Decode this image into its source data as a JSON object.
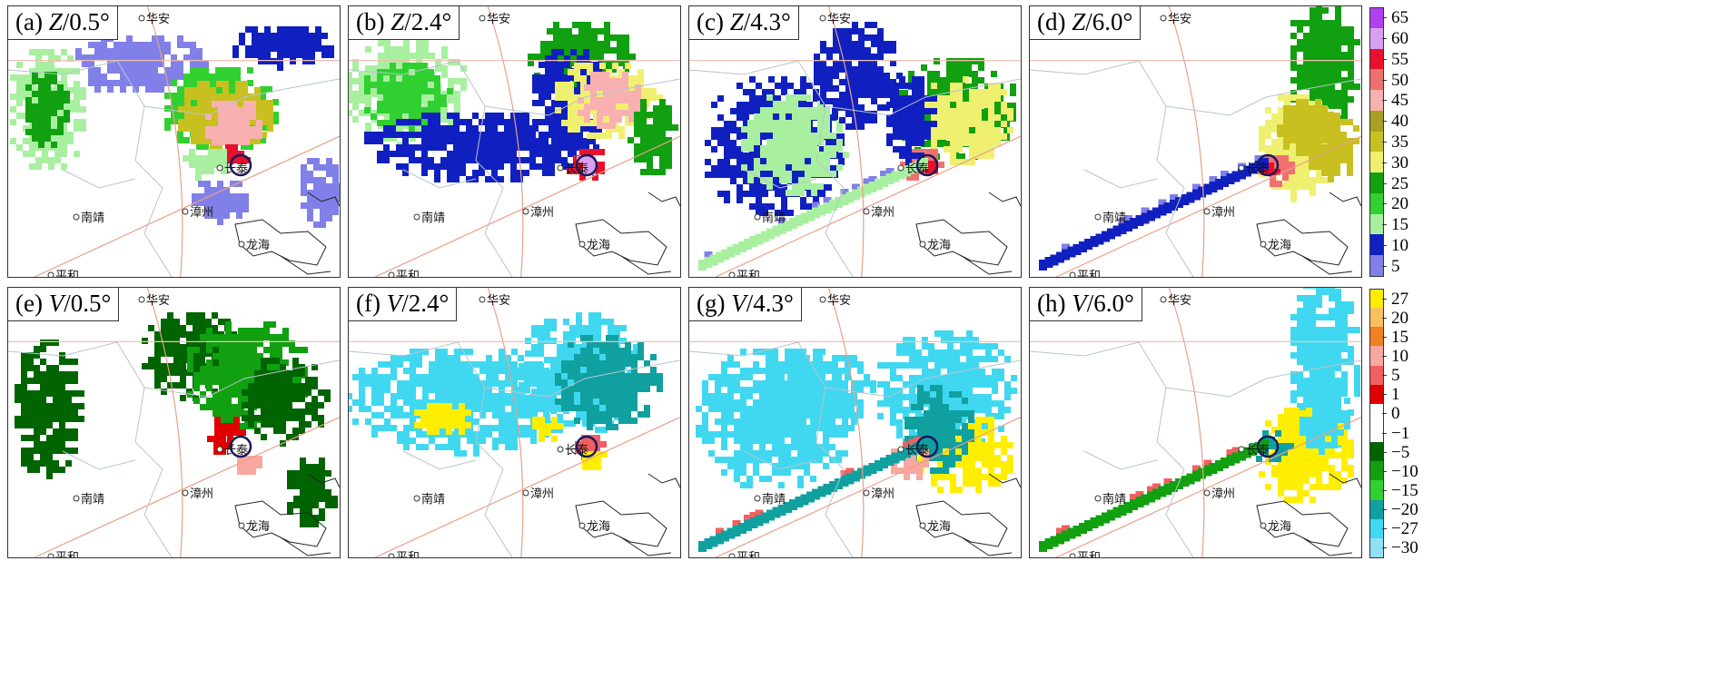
{
  "panels": [
    {
      "id": "a",
      "prefix": "(a) ",
      "var": "Z",
      "angle": "/0.5°"
    },
    {
      "id": "b",
      "prefix": "(b) ",
      "var": "Z",
      "angle": "/2.4°"
    },
    {
      "id": "c",
      "prefix": "(c) ",
      "var": "Z",
      "angle": "/4.3°"
    },
    {
      "id": "d",
      "prefix": "(d) ",
      "var": "Z",
      "angle": "/6.0°"
    },
    {
      "id": "e",
      "prefix": "(e) ",
      "var": "V",
      "angle": "/0.5°"
    },
    {
      "id": "f",
      "prefix": "(f) ",
      "var": "V",
      "angle": "/2.4°"
    },
    {
      "id": "g",
      "prefix": "(g) ",
      "var": "V",
      "angle": "/4.3°"
    },
    {
      "id": "h",
      "prefix": "(h) ",
      "var": "V",
      "angle": "/6.0°"
    }
  ],
  "places": {
    "huaan": "华安",
    "nanjing": "南靖",
    "zhangzhou": "漳州",
    "longhai": "龙海",
    "pinghe": "平和",
    "changtai": "长泰"
  },
  "colorbar_z": {
    "ticks": [
      "65",
      "60",
      "55",
      "50",
      "45",
      "40",
      "35",
      "30",
      "25",
      "20",
      "15",
      "10",
      "5"
    ],
    "colors": [
      "#b040f0",
      "#d8a0f0",
      "#e8102a",
      "#f07070",
      "#f8b0b0",
      "#a8a020",
      "#c8c020",
      "#f0f070",
      "#10a010",
      "#30d030",
      "#a8f0a0",
      "#1020c0",
      "#8080e8"
    ]
  },
  "colorbar_v": {
    "ticks": [
      "27",
      "20",
      "15",
      "10",
      "5",
      "1",
      "0",
      "−1",
      "−5",
      "−10",
      "−15",
      "−20",
      "−27",
      "−30"
    ],
    "colors": [
      "#ffee00",
      "#f8c060",
      "#f08020",
      "#f8a8a0",
      "#f06060",
      "#e00000",
      "#ffffff",
      "#ffffff",
      "#006400",
      "#10a010",
      "#30d030",
      "#10a0a0",
      "#40d8f0",
      "#90e0f8"
    ]
  }
}
